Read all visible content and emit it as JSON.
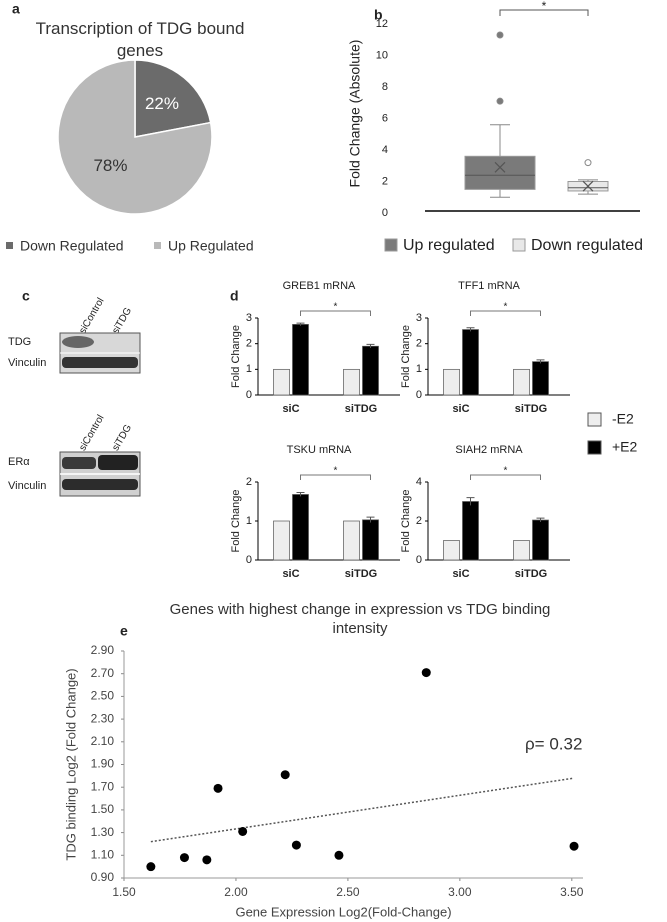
{
  "panel_labels": [
    "a",
    "b",
    "c",
    "d",
    "e"
  ],
  "blot": {
    "lanes": [
      "siControl",
      "siTDG"
    ],
    "rows_top": [
      "TDG",
      "Vinculin"
    ],
    "rows_bottom": [
      "ERα",
      "Vinculin"
    ]
  },
  "chart_data": [
    {
      "type": "pie",
      "title": "Transcription of TDG bound genes",
      "categories": [
        "Down Regulated",
        "Up Regulated"
      ],
      "values": [
        22,
        78
      ],
      "value_labels": [
        "22%",
        "78%"
      ],
      "colors": [
        "#6b6b6b",
        "#b9b9b9"
      ]
    },
    {
      "type": "box",
      "ylabel": "Fold Change (Absolute)",
      "ylim": [
        0,
        12
      ],
      "yticks": [
        0,
        2,
        4,
        6,
        8,
        10,
        12
      ],
      "annotation": "*",
      "series": [
        {
          "name": "Up regulated",
          "color": "#7a7a7a",
          "min": 1.0,
          "q1": 1.5,
          "median": 2.4,
          "q3": 3.6,
          "max": 5.6,
          "mean": 2.9,
          "outliers": [
            7.1,
            11.3
          ]
        },
        {
          "name": "Down regulated",
          "color": "#e8e8e8",
          "min": 1.2,
          "q1": 1.4,
          "median": 1.6,
          "q3": 2.0,
          "max": 2.1,
          "mean": 1.7,
          "outliers": [
            3.2
          ]
        }
      ]
    },
    {
      "type": "bar",
      "title": "GREB1 mRNA",
      "ylabel": "Fold Change",
      "categories": [
        "siC",
        "siTDG"
      ],
      "ylim": [
        0,
        3
      ],
      "yticks": [
        0,
        1,
        2,
        3
      ],
      "annotation": "*",
      "series": [
        {
          "name": "-E2",
          "color": "#eeeeee",
          "values": [
            1,
            1
          ],
          "errors": [
            0,
            0
          ]
        },
        {
          "name": "+E2",
          "color": "#000000",
          "values": [
            2.75,
            1.9
          ],
          "errors": [
            0.05,
            0.07
          ]
        }
      ]
    },
    {
      "type": "bar",
      "title": "TFF1 mRNA",
      "ylabel": "Fold Change",
      "categories": [
        "siC",
        "siTDG"
      ],
      "ylim": [
        0,
        3
      ],
      "yticks": [
        0,
        1,
        2,
        3
      ],
      "annotation": "*",
      "series": [
        {
          "name": "-E2",
          "color": "#eeeeee",
          "values": [
            1,
            1
          ],
          "errors": [
            0,
            0
          ]
        },
        {
          "name": "+E2",
          "color": "#000000",
          "values": [
            2.55,
            1.3
          ],
          "errors": [
            0.07,
            0.07
          ]
        }
      ]
    },
    {
      "type": "bar",
      "title": "TSKU mRNA",
      "ylabel": "Fold Change",
      "categories": [
        "siC",
        "siTDG"
      ],
      "ylim": [
        0,
        2
      ],
      "yticks": [
        0,
        1,
        2
      ],
      "annotation": "*",
      "series": [
        {
          "name": "-E2",
          "color": "#eeeeee",
          "values": [
            1,
            1
          ],
          "errors": [
            0,
            0
          ]
        },
        {
          "name": "+E2",
          "color": "#000000",
          "values": [
            1.68,
            1.03
          ],
          "errors": [
            0.05,
            0.07
          ]
        }
      ]
    },
    {
      "type": "bar",
      "title": "SIAH2 mRNA",
      "ylabel": "Fold Change",
      "categories": [
        "siC",
        "siTDG"
      ],
      "ylim": [
        0,
        4
      ],
      "yticks": [
        0,
        2,
        4
      ],
      "annotation": "*",
      "series": [
        {
          "name": "-E2",
          "color": "#eeeeee",
          "values": [
            1,
            1
          ],
          "errors": [
            0,
            0
          ]
        },
        {
          "name": "+E2",
          "color": "#000000",
          "values": [
            3.0,
            2.05
          ],
          "errors": [
            0.2,
            0.1
          ]
        }
      ]
    },
    {
      "type": "scatter",
      "title": "Genes with highest change in expression vs TDG binding intensity",
      "xlabel": "Gene Expression Log2(Fold-Change)",
      "ylabel": "TDG binding Log2 (Fold Change)",
      "annotation": "ρ= 0.32",
      "color": "#000000",
      "xlim": [
        1.5,
        3.55
      ],
      "xticks": [
        {
          "value": 1.5,
          "label": "1.50"
        },
        {
          "value": 2,
          "label": "2.00"
        },
        {
          "value": 2.5,
          "label": "2.50"
        },
        {
          "value": 3,
          "label": "3.00"
        },
        {
          "value": 3.5,
          "label": "3.50"
        }
      ],
      "ylim": [
        0.9,
        2.9
      ],
      "yticks": [
        {
          "value": 0.9,
          "label": "0.90"
        },
        {
          "value": 1.1,
          "label": "1.10"
        },
        {
          "value": 1.3,
          "label": "1.30"
        },
        {
          "value": 1.5,
          "label": "1.50"
        },
        {
          "value": 1.7,
          "label": "1.70"
        },
        {
          "value": 1.9,
          "label": "1.90"
        },
        {
          "value": 2.1,
          "label": "2.10"
        },
        {
          "value": 2.3,
          "label": "2.30"
        },
        {
          "value": 2.5,
          "label": "2.50"
        },
        {
          "value": 2.7,
          "label": "2.70"
        },
        {
          "value": 2.9,
          "label": "2.90"
        }
      ],
      "x": [
        1.62,
        1.77,
        1.87,
        1.92,
        2.03,
        2.22,
        2.27,
        2.46,
        2.85,
        3.51
      ],
      "values": [
        1.0,
        1.08,
        1.06,
        1.69,
        1.31,
        1.81,
        1.19,
        1.1,
        2.71,
        1.18
      ],
      "trendline": {
        "x": [
          1.62,
          3.51
        ],
        "values": [
          1.22,
          1.78
        ]
      }
    }
  ]
}
